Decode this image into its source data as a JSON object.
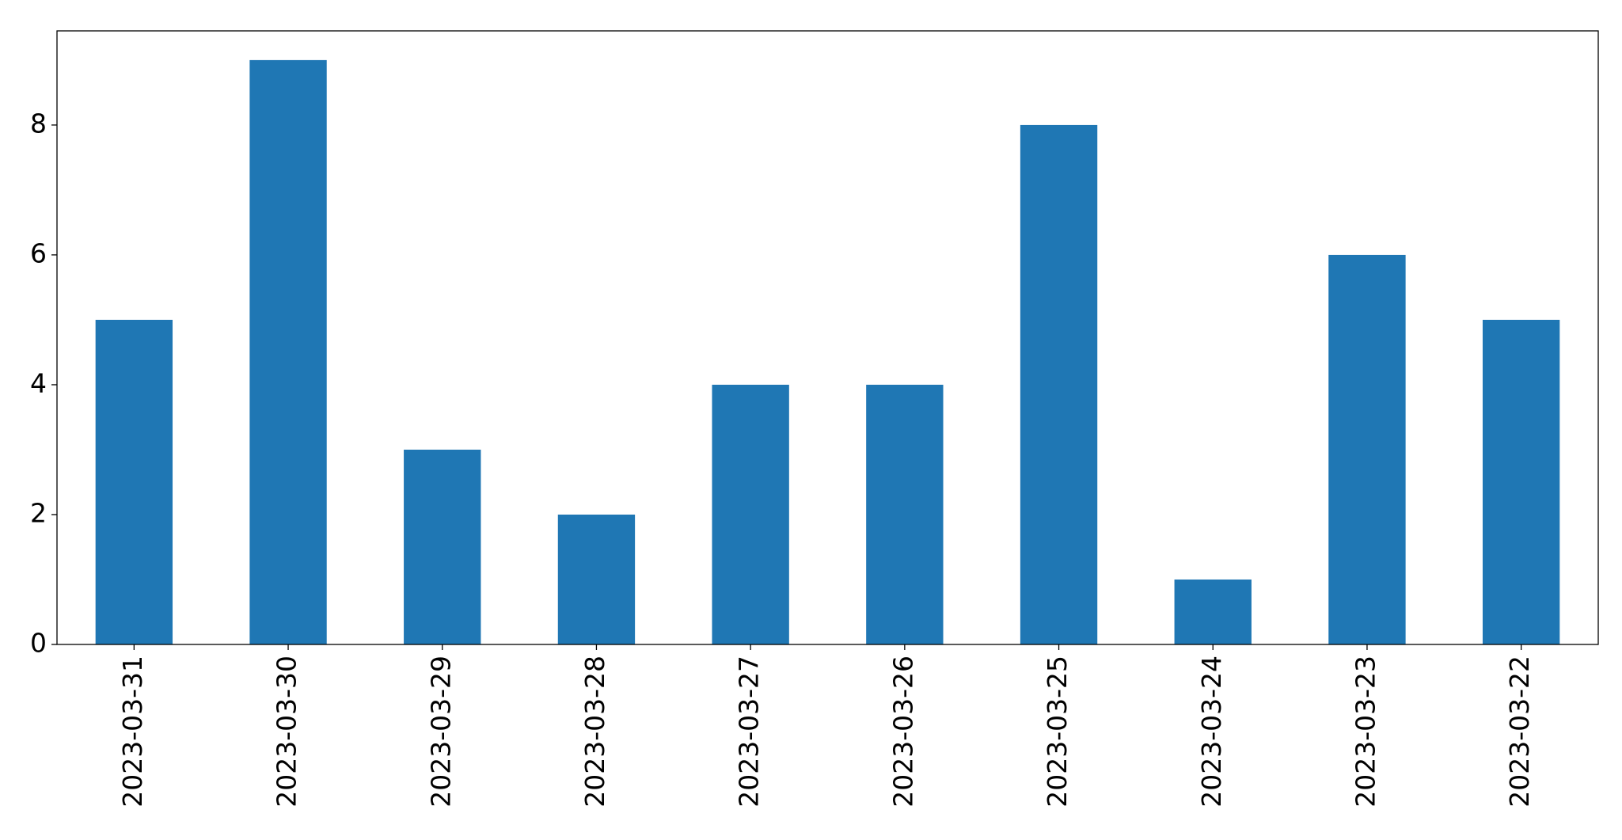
{
  "chart_data": {
    "type": "bar",
    "categories": [
      "2023-03-31",
      "2023-03-30",
      "2023-03-29",
      "2023-03-28",
      "2023-03-27",
      "2023-03-26",
      "2023-03-25",
      "2023-03-24",
      "2023-03-23",
      "2023-03-22"
    ],
    "values": [
      5,
      9,
      3,
      2,
      4,
      4,
      8,
      1,
      6,
      5
    ],
    "color": "#1f77b4",
    "ylim": [
      0,
      9.45
    ],
    "yticks": [
      0,
      2,
      4,
      6,
      8
    ],
    "grid": false
  }
}
